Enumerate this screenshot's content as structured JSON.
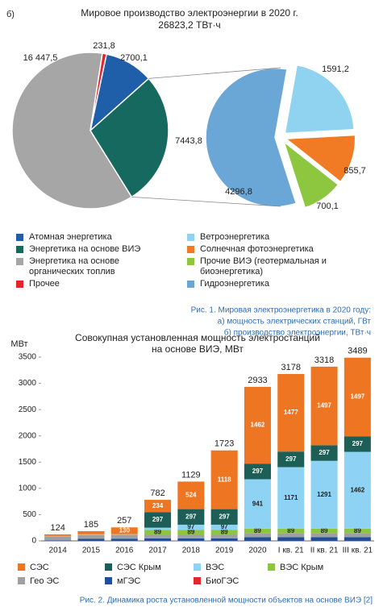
{
  "panel_label": "б)",
  "chart_data": [
    {
      "type": "pie",
      "title": "Мировое производство электроэнергии в 2020 г.",
      "subtitle": "26823,2 ТВт·ч",
      "categories": [
        "Атомная энергетика",
        "Энергетика на основе ВИЭ",
        "Энергетика на основе органических топлив",
        "Прочее"
      ],
      "values": [
        2700.1,
        7443.8,
        16447.5,
        231.8
      ],
      "value_labels": [
        "2700,1",
        "7443,8",
        "16 447,5",
        "231,8"
      ],
      "colors": [
        "#1f5ea8",
        "#16695e",
        "#a6a6a6",
        "#e3262d"
      ]
    },
    {
      "type": "pie",
      "categories": [
        "Ветроэнергетика",
        "Солнечная фотоэнергетика",
        "Прочие ВИЭ (геотермальная и биоэнергетика)",
        "Гидроэнергетика"
      ],
      "values": [
        1591.2,
        855.7,
        700.1,
        4296.8
      ],
      "value_labels": [
        "1591,2",
        "855,7",
        "700,1",
        "4296,8"
      ],
      "colors": [
        "#8fd3f0",
        "#f07b24",
        "#8dc63f",
        "#6aa6d6"
      ]
    },
    {
      "type": "bar",
      "stacked": true,
      "title": [
        "Совокупная установленная мощность электростанций",
        "на основе ВИЭ, МВт"
      ],
      "ylabel": "МВт",
      "categories": [
        "2014",
        "2015",
        "2016",
        "2017",
        "2018",
        "2019",
        "2020",
        "I кв. 21",
        "II кв. 21",
        "III кв. 21"
      ],
      "totals": [
        124,
        185,
        257,
        782,
        1129,
        1723,
        2933,
        3178,
        3318,
        3489
      ],
      "series": [
        {
          "name": "СЭС",
          "color": "#ee7623",
          "values": [
            30,
            60,
            130,
            234,
            524,
            1118,
            1462,
            1477,
            1497,
            1497
          ],
          "value_labels": [
            null,
            null,
            "130",
            "234",
            "524",
            "1118",
            "1462",
            "1477",
            "1497",
            "1497"
          ]
        },
        {
          "name": "СЭС Крым",
          "color": "#1d5f56",
          "values": [
            0,
            0,
            0,
            297,
            297,
            297,
            297,
            297,
            297,
            297
          ],
          "value_labels": [
            null,
            null,
            null,
            "297",
            "297",
            "297",
            "297",
            "297",
            "297",
            "297"
          ]
        },
        {
          "name": "ВЭС",
          "color": "#8ed3f4",
          "values": [
            10,
            11,
            11,
            40,
            97,
            97,
            941,
            1171,
            1291,
            1462
          ],
          "value_labels": [
            null,
            null,
            null,
            null,
            "97",
            "97",
            "941",
            "1171",
            "1291",
            "1462"
          ]
        },
        {
          "name": "ВЭС Крым",
          "color": "#8cc63f",
          "values": [
            0,
            0,
            0,
            89,
            89,
            89,
            89,
            89,
            89,
            89
          ],
          "value_labels": [
            null,
            null,
            null,
            "89",
            "89",
            "89",
            "89",
            "89",
            "89",
            "89"
          ]
        },
        {
          "name": "Гео ЭС",
          "color": "#a0a0a0",
          "values": [
            74,
            74,
            74,
            74,
            74,
            74,
            74,
            74,
            74,
            74
          ]
        },
        {
          "name": "мГЭС",
          "color": "#1f4e9a",
          "values": [
            8,
            38,
            40,
            46,
            46,
            46,
            68,
            68,
            68,
            68
          ]
        },
        {
          "name": "БиоГЭС",
          "color": "#e3262d",
          "values": [
            2,
            2,
            2,
            2,
            2,
            2,
            2,
            2,
            2,
            2
          ]
        }
      ],
      "ylim": [
        0,
        3500
      ],
      "yticks": [
        0,
        500,
        1000,
        1500,
        2000,
        2500,
        3000,
        3500
      ],
      "grid": false
    }
  ],
  "captions": [
    [
      "Рис. 1. Мировая электроэнергетика в 2020 году:",
      "а) мощность электрических станций, ГВт",
      "б) производство электроэнергии, ТВт·ч"
    ],
    "Рис. 2. Динамика роста установленной мощности объектов на основе ВИЭ [2]"
  ]
}
